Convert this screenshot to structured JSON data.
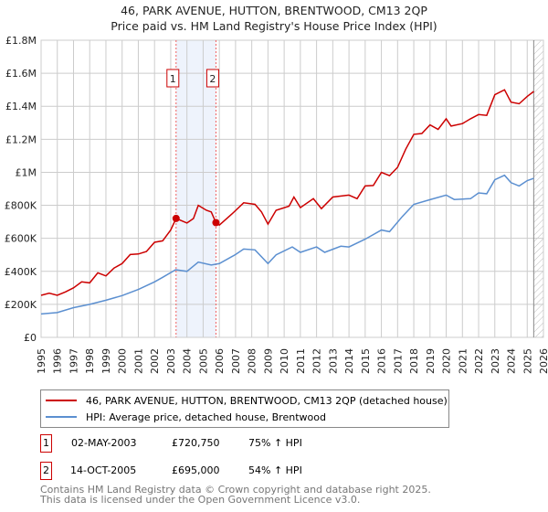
{
  "title": "46, PARK AVENUE, HUTTON, BRENTWOOD, CM13 2QP",
  "subtitle": "Price paid vs. HM Land Registry's House Price Index (HPI)",
  "chart_data": {
    "type": "line",
    "xlim": [
      1995,
      2026
    ],
    "ylim": [
      0,
      1800000
    ],
    "x_ticks": [
      "1995",
      "1996",
      "1997",
      "1998",
      "1999",
      "2000",
      "2001",
      "2002",
      "2003",
      "2004",
      "2005",
      "2006",
      "2007",
      "2008",
      "2009",
      "2010",
      "2011",
      "2012",
      "2013",
      "2014",
      "2015",
      "2016",
      "2017",
      "2018",
      "2019",
      "2020",
      "2021",
      "2022",
      "2023",
      "2024",
      "2025",
      "2026"
    ],
    "y_ticks": [
      {
        "v": 0,
        "label": "£0"
      },
      {
        "v": 200000,
        "label": "£200K"
      },
      {
        "v": 400000,
        "label": "£400K"
      },
      {
        "v": 600000,
        "label": "£600K"
      },
      {
        "v": 800000,
        "label": "£800K"
      },
      {
        "v": 1000000,
        "label": "£1M"
      },
      {
        "v": 1200000,
        "label": "£1.2M"
      },
      {
        "v": 1400000,
        "label": "£1.4M"
      },
      {
        "v": 1600000,
        "label": "£1.6M"
      },
      {
        "v": 1800000,
        "label": "£1.8M"
      }
    ],
    "grid": true,
    "shaded_range": [
      2003.33,
      2005.79
    ],
    "forecast_hatch_from": 2025.4,
    "series": [
      {
        "name": "46, PARK AVENUE, HUTTON, BRENTWOOD, CM13 2QP (detached house)",
        "color": "#cc0000",
        "x": [
          1995,
          1995.5,
          1996,
          1996.5,
          1997,
          1997.5,
          1998,
          1998.5,
          1999,
          1999.5,
          2000,
          2000.5,
          2001,
          2001.5,
          2002,
          2002.5,
          2003,
          2003.33,
          2004,
          2004.4,
          2004.7,
          2005.2,
          2005.5,
          2005.79,
          2006,
          2006.8,
          2007.5,
          2008.2,
          2008.6,
          2009,
          2009.5,
          2010.3,
          2010.6,
          2011,
          2011.8,
          2012.3,
          2013,
          2014,
          2014.5,
          2015,
          2015.5,
          2016,
          2016.5,
          2017,
          2017.5,
          2018,
          2018.5,
          2019,
          2019.5,
          2020,
          2020.3,
          2021,
          2021.5,
          2022,
          2022.5,
          2023,
          2023.6,
          2024,
          2024.5,
          2025,
          2025.4
        ],
        "values": [
          255000,
          268000,
          255000,
          275000,
          300000,
          336000,
          330000,
          391000,
          372000,
          420000,
          447000,
          502000,
          505000,
          520000,
          576000,
          585000,
          650000,
          720750,
          693000,
          720000,
          800000,
          770000,
          760000,
          695000,
          680000,
          750000,
          815000,
          806000,
          760000,
          686000,
          770000,
          795000,
          850000,
          786000,
          840000,
          780000,
          850000,
          862000,
          840000,
          917000,
          920000,
          999000,
          980000,
          1030000,
          1140000,
          1230000,
          1235000,
          1287000,
          1260000,
          1324000,
          1280000,
          1295000,
          1324000,
          1350000,
          1345000,
          1470000,
          1500000,
          1425000,
          1415000,
          1460000,
          1490000
        ]
      },
      {
        "name": "HPI: Average price, detached house, Brentwood",
        "color": "#5b8fd0",
        "x": [
          1995,
          1996,
          1997,
          1998,
          1999,
          2000,
          2001,
          2002,
          2002.5,
          2003.3,
          2004,
          2004.7,
          2005.5,
          2006,
          2007,
          2007.5,
          2008.2,
          2009,
          2009.5,
          2010.5,
          2011,
          2012,
          2012.5,
          2013.5,
          2014,
          2015,
          2016,
          2016.5,
          2017.3,
          2018,
          2019,
          2020,
          2020.5,
          2021.5,
          2022,
          2022.5,
          2023,
          2023.6,
          2024,
          2024.5,
          2025,
          2025.4
        ],
        "values": [
          142000,
          150000,
          180000,
          200000,
          225000,
          253000,
          290000,
          336000,
          364000,
          410000,
          400000,
          456000,
          438000,
          447000,
          502000,
          535000,
          530000,
          447000,
          500000,
          548000,
          515000,
          548000,
          515000,
          552000,
          548000,
          595000,
          650000,
          640000,
          733000,
          806000,
          834000,
          862000,
          835000,
          840000,
          875000,
          870000,
          955000,
          982000,
          937000,
          917000,
          950000,
          963000
        ]
      }
    ],
    "sales": [
      {
        "label": "1",
        "x": 2003.33,
        "value": 720750
      },
      {
        "label": "2",
        "x": 2005.79,
        "value": 695000
      }
    ]
  },
  "legend": {
    "property": "46, PARK AVENUE, HUTTON, BRENTWOOD, CM13 2QP (detached house)",
    "hpi": "HPI: Average price, detached house, Brentwood"
  },
  "transactions": [
    {
      "num": "1",
      "date": "02-MAY-2003",
      "price": "£720,750",
      "hpi": "75% ↑ HPI"
    },
    {
      "num": "2",
      "date": "14-OCT-2005",
      "price": "£695,000",
      "hpi": "54% ↑ HPI"
    }
  ],
  "footer": {
    "line1": "Contains HM Land Registry data © Crown copyright and database right 2025.",
    "line2": "This data is licensed under the Open Government Licence v3.0."
  }
}
